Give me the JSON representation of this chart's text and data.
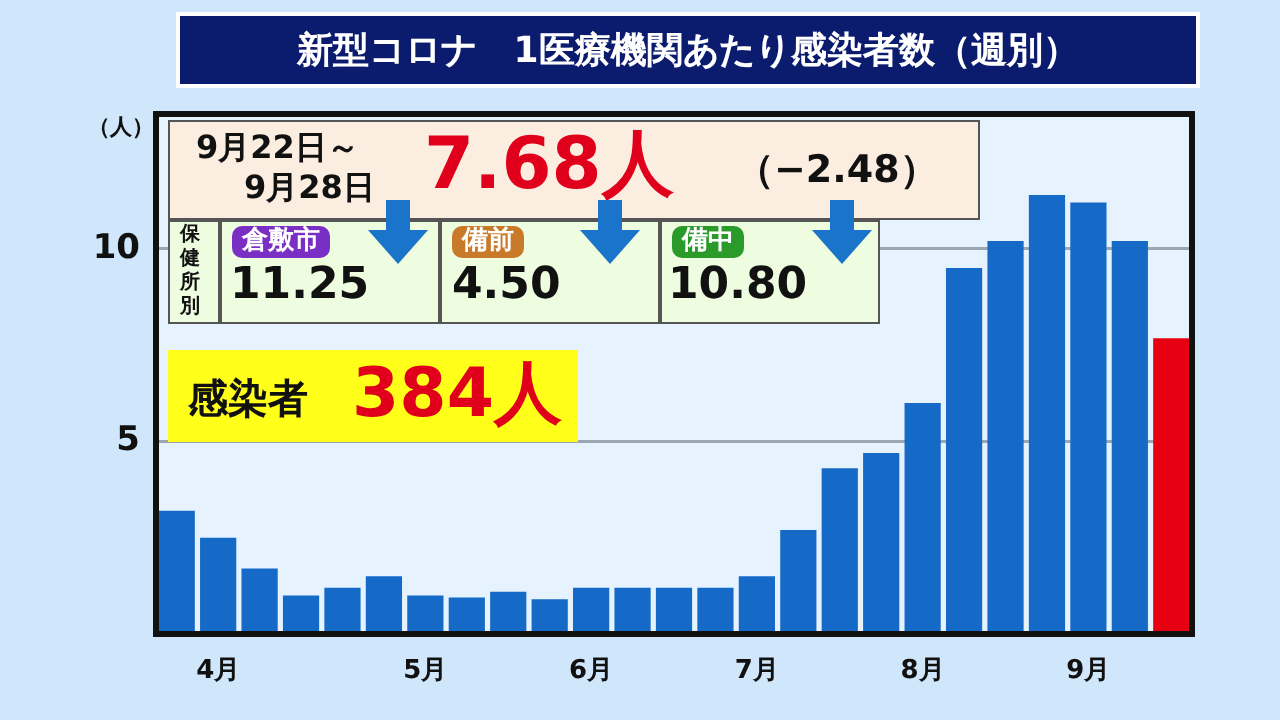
{
  "chart_data": {
    "type": "bar",
    "title": "新型コロナ　1医療機関あたり感染者数（週別）",
    "ylabel": "（人）",
    "categories": [
      null,
      "4月",
      null,
      null,
      null,
      null,
      "5月",
      null,
      null,
      null,
      "6月",
      null,
      null,
      null,
      "7月",
      null,
      null,
      null,
      "8月",
      null,
      null,
      null,
      "9月",
      null,
      null
    ],
    "values": [
      3.2,
      2.5,
      1.7,
      1.0,
      1.2,
      1.5,
      1.0,
      0.95,
      1.1,
      0.9,
      1.2,
      1.2,
      1.2,
      1.2,
      1.5,
      2.7,
      4.3,
      4.7,
      6.0,
      9.5,
      10.2,
      11.4,
      11.2,
      10.2,
      7.68
    ],
    "colors": [
      "#1569c7",
      "#1569c7",
      "#1569c7",
      "#1569c7",
      "#1569c7",
      "#1569c7",
      "#1569c7",
      "#1569c7",
      "#1569c7",
      "#1569c7",
      "#1569c7",
      "#1569c7",
      "#1569c7",
      "#1569c7",
      "#1569c7",
      "#1569c7",
      "#1569c7",
      "#1569c7",
      "#1569c7",
      "#1569c7",
      "#1569c7",
      "#1569c7",
      "#1569c7",
      "#1569c7",
      "#e60012"
    ],
    "ylim": [
      0,
      13.5
    ],
    "yticks": [
      5,
      10
    ],
    "grid": "y",
    "legend": false,
    "annotations": [
      "9月22日～",
      "9月28日",
      "7.68人",
      "（−2.48）",
      "保健所別",
      "倉敷市",
      "11.25",
      "備前",
      "4.50",
      "備中",
      "10.80",
      "感染者",
      "384人"
    ]
  }
}
